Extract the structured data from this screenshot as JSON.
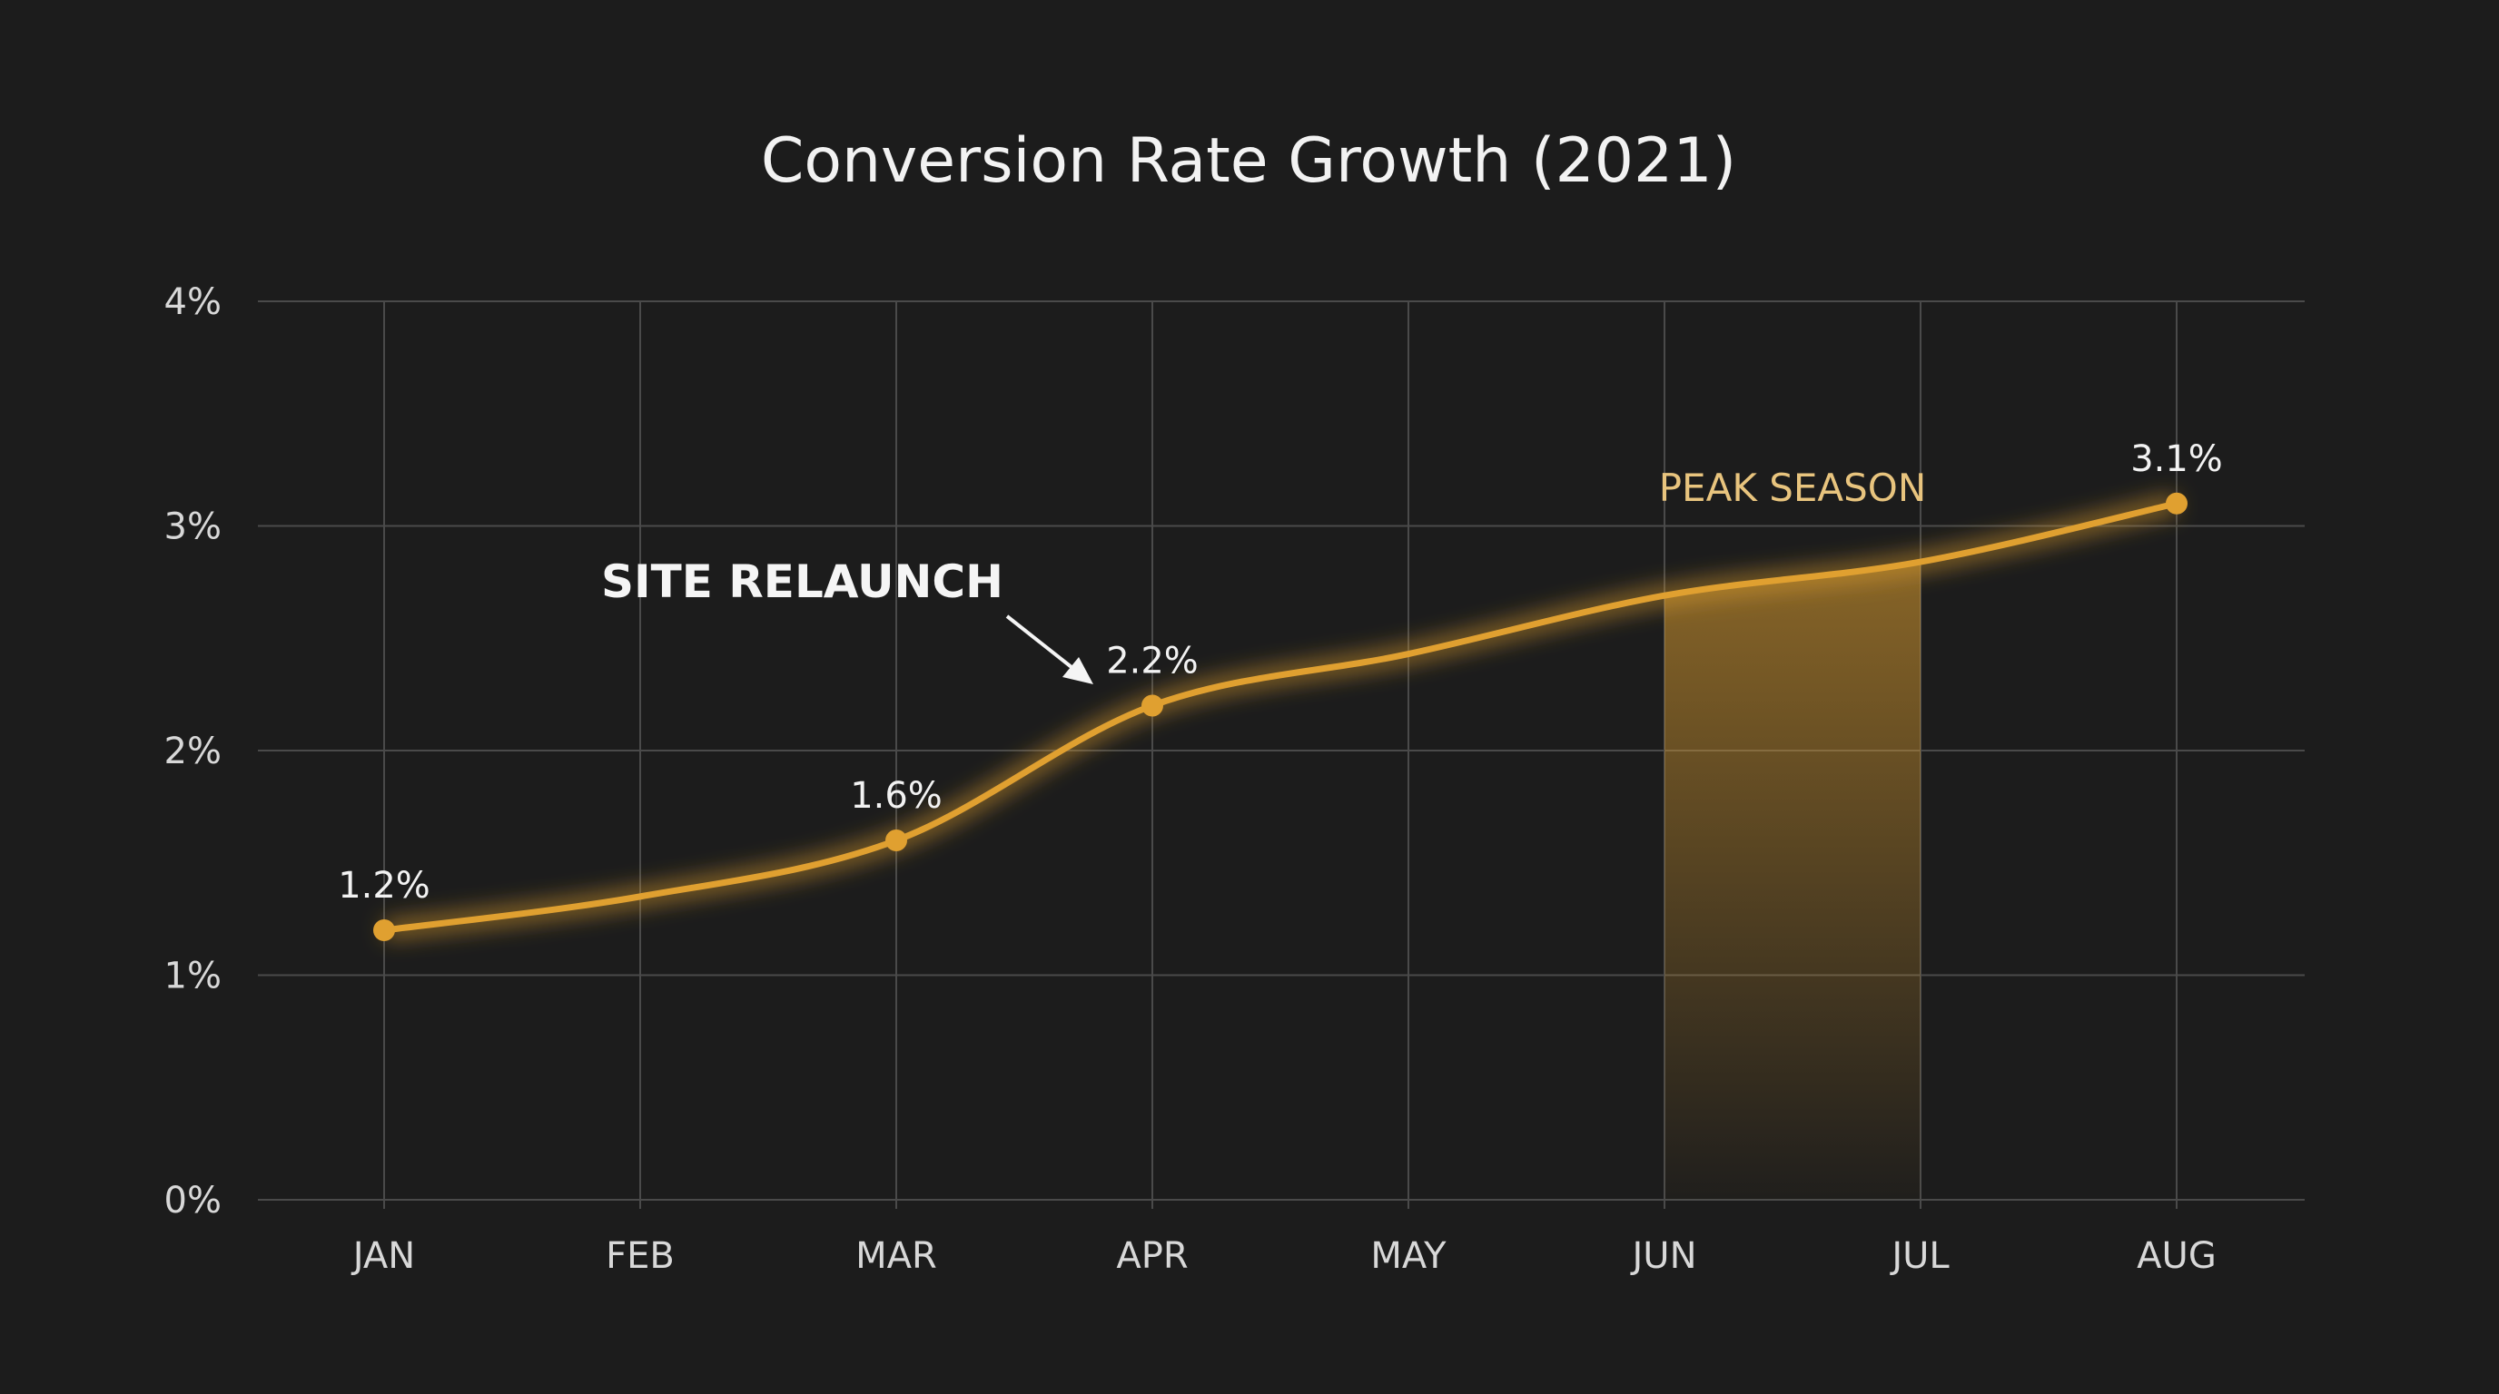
{
  "chart_data": {
    "type": "line",
    "title": "Conversion Rate Growth (2021)",
    "xlabel": "",
    "ylabel": "",
    "categories": [
      "JAN",
      "FEB",
      "MAR",
      "APR",
      "MAY",
      "JUN",
      "JUL",
      "AUG"
    ],
    "series": [
      {
        "values": [
          1.2,
          1.35,
          1.6,
          2.2,
          2.43,
          2.69,
          2.84,
          3.1
        ]
      }
    ],
    "data_labels": [
      {
        "category": "JAN",
        "text": "1.2%"
      },
      {
        "category": "MAR",
        "text": "1.6%"
      },
      {
        "category": "APR",
        "text": "2.2%"
      },
      {
        "category": "AUG",
        "text": "3.1%"
      }
    ],
    "ylim": [
      0,
      4
    ],
    "yticks": [
      0,
      1,
      2,
      3,
      4
    ],
    "ytick_labels": [
      "0%",
      "1%",
      "2%",
      "3%",
      "4%"
    ],
    "grid": true,
    "legend": "none",
    "annotations": {
      "relaunch": {
        "text": "SITE RELAUNCH",
        "points_to": "APR"
      },
      "peak": {
        "text": "PEAK SEASON",
        "from": "JUN",
        "to": "JUL"
      }
    },
    "colors": {
      "background": "#1c1c1c",
      "line": "#e0a030",
      "grid": "#4a4a4a",
      "text": "#f2f2f2",
      "peak_label": "#e8c47e"
    }
  }
}
